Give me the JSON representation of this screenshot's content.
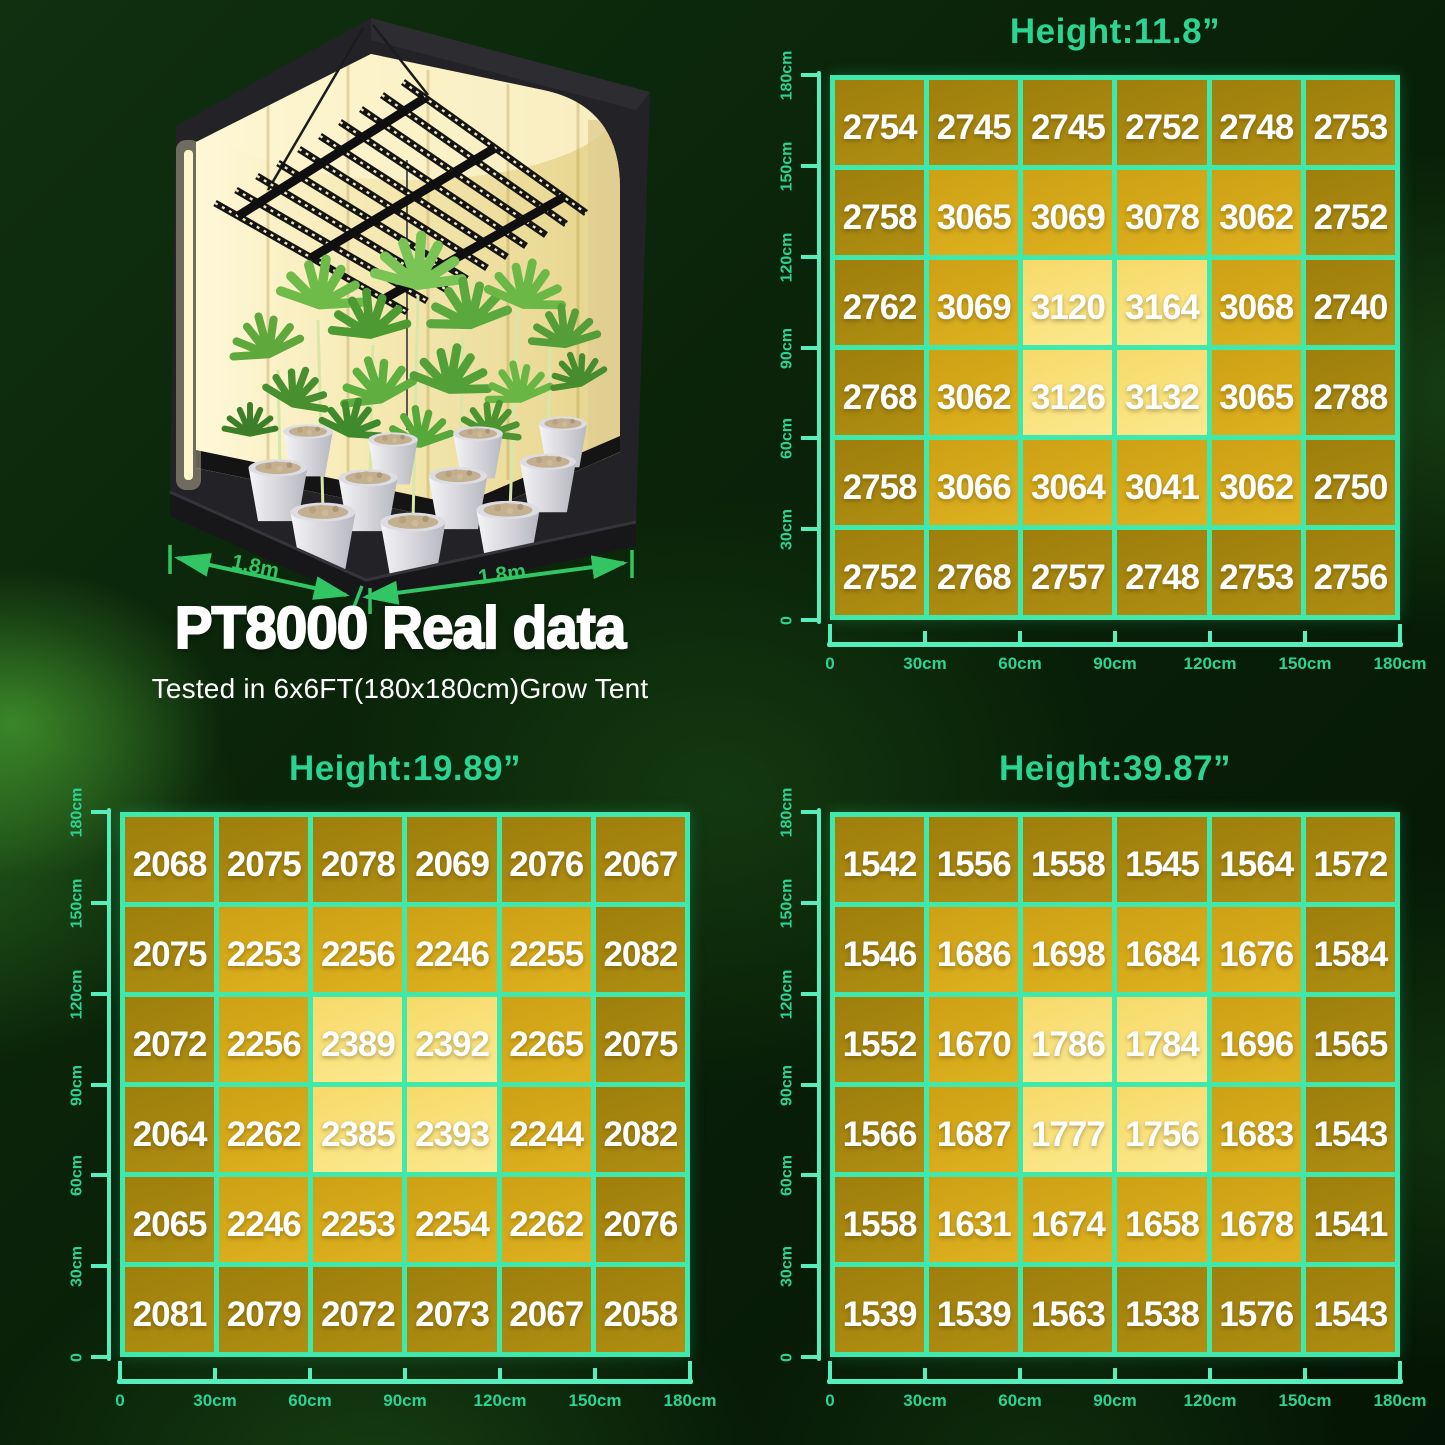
{
  "hero": {
    "title": "PT8000 Real data",
    "subtitle": "Tested in 6x6FT(180x180cm)Grow Tent",
    "width_label": "1.8m",
    "depth_label": "1.8m"
  },
  "colors": {
    "grid_line": "#3fe8ab",
    "axis_ruler": "#57eebd",
    "axis_label": "#2cd394",
    "panel_title": "#2bd492",
    "cell_dark": "#a8870f",
    "cell_mid": "#d5a91b",
    "cell_light": "#f9e27c",
    "value_text": "#ffffff",
    "arrow_green": "#31c563",
    "hero_text": "#ffffff"
  },
  "chart_data": [
    {
      "type": "heatmap",
      "title": "Height:11.8”",
      "x_tick_labels": [
        "0",
        "30cm",
        "60cm",
        "90cm",
        "120cm",
        "150cm",
        "180cm"
      ],
      "y_tick_labels": [
        "180cm",
        "150cm",
        "120cm",
        "90cm",
        "60cm",
        "30cm",
        "0"
      ],
      "values": [
        [
          2754,
          2745,
          2745,
          2752,
          2748,
          2753
        ],
        [
          2758,
          3065,
          3069,
          3078,
          3062,
          2752
        ],
        [
          2762,
          3069,
          3120,
          3164,
          3068,
          2740
        ],
        [
          2768,
          3062,
          3126,
          3132,
          3065,
          2788
        ],
        [
          2758,
          3066,
          3064,
          3041,
          3062,
          2750
        ],
        [
          2752,
          2768,
          2757,
          2748,
          2753,
          2756
        ]
      ]
    },
    {
      "type": "heatmap",
      "title": "Height:19.89”",
      "x_tick_labels": [
        "0",
        "30cm",
        "60cm",
        "90cm",
        "120cm",
        "150cm",
        "180cm"
      ],
      "y_tick_labels": [
        "180cm",
        "150cm",
        "120cm",
        "90cm",
        "60cm",
        "30cm",
        "0"
      ],
      "values": [
        [
          2068,
          2075,
          2078,
          2069,
          2076,
          2067
        ],
        [
          2075,
          2253,
          2256,
          2246,
          2255,
          2082
        ],
        [
          2072,
          2256,
          2389,
          2392,
          2265,
          2075
        ],
        [
          2064,
          2262,
          2385,
          2393,
          2244,
          2082
        ],
        [
          2065,
          2246,
          2253,
          2254,
          2262,
          2076
        ],
        [
          2081,
          2079,
          2072,
          2073,
          2067,
          2058
        ]
      ]
    },
    {
      "type": "heatmap",
      "title": "Height:39.87”",
      "x_tick_labels": [
        "0",
        "30cm",
        "60cm",
        "90cm",
        "120cm",
        "150cm",
        "180cm"
      ],
      "y_tick_labels": [
        "180cm",
        "150cm",
        "120cm",
        "90cm",
        "60cm",
        "30cm",
        "0"
      ],
      "values": [
        [
          1542,
          1556,
          1558,
          1545,
          1564,
          1572
        ],
        [
          1546,
          1686,
          1698,
          1684,
          1676,
          1584
        ],
        [
          1552,
          1670,
          1786,
          1784,
          1696,
          1565
        ],
        [
          1566,
          1687,
          1777,
          1756,
          1683,
          1543
        ],
        [
          1558,
          1631,
          1674,
          1658,
          1678,
          1541
        ],
        [
          1539,
          1539,
          1563,
          1538,
          1576,
          1543
        ]
      ]
    }
  ]
}
